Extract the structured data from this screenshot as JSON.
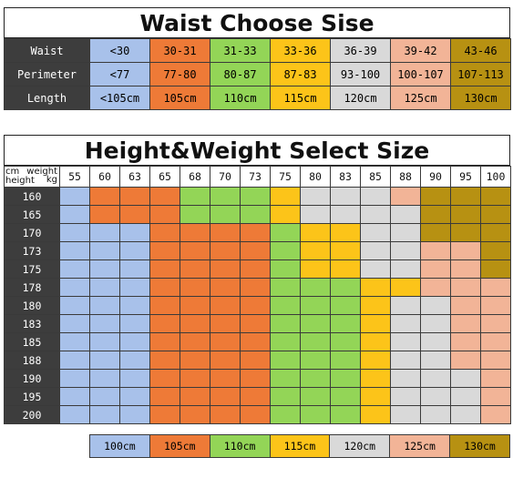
{
  "waist": {
    "title": "Waist Choose Sise",
    "rows": [
      {
        "label": "Waist",
        "cells": [
          "<30",
          "30-31",
          "31-33",
          "33-36",
          "36-39",
          "39-42",
          "43-46"
        ]
      },
      {
        "label": "Perimeter",
        "cells": [
          "<77",
          "77-80",
          "80-87",
          "87-83",
          "93-100",
          "100-107",
          "107-113"
        ]
      },
      {
        "label": "Length",
        "cells": [
          "<105cm",
          "105cm",
          "110cm",
          "115cm",
          "120cm",
          "125cm",
          "130cm"
        ]
      }
    ]
  },
  "height_weight": {
    "title": "Height&Weight Select Size",
    "corner": {
      "weight": "weight",
      "kg": "kg",
      "cm": "cm",
      "height": "height"
    },
    "weights": [
      "55",
      "60",
      "63",
      "65",
      "68",
      "70",
      "73",
      "75",
      "80",
      "83",
      "85",
      "88",
      "90",
      "95",
      "100"
    ],
    "heights": [
      "160",
      "165",
      "170",
      "173",
      "175",
      "178",
      "180",
      "183",
      "185",
      "188",
      "190",
      "195",
      "200"
    ],
    "grid": [
      [
        0,
        1,
        1,
        1,
        2,
        2,
        2,
        3,
        4,
        4,
        4,
        5,
        6,
        6,
        6
      ],
      [
        0,
        1,
        1,
        1,
        2,
        2,
        2,
        3,
        4,
        4,
        4,
        4,
        6,
        6,
        6
      ],
      [
        0,
        0,
        0,
        1,
        1,
        1,
        1,
        2,
        3,
        3,
        4,
        4,
        6,
        6,
        6
      ],
      [
        0,
        0,
        0,
        1,
        1,
        1,
        1,
        2,
        3,
        3,
        4,
        4,
        5,
        5,
        6
      ],
      [
        0,
        0,
        0,
        1,
        1,
        1,
        1,
        2,
        3,
        3,
        4,
        4,
        5,
        5,
        6
      ],
      [
        0,
        0,
        0,
        1,
        1,
        1,
        1,
        2,
        2,
        2,
        3,
        3,
        5,
        5,
        5
      ],
      [
        0,
        0,
        0,
        1,
        1,
        1,
        1,
        2,
        2,
        2,
        3,
        4,
        4,
        5,
        5
      ],
      [
        0,
        0,
        0,
        1,
        1,
        1,
        1,
        2,
        2,
        2,
        3,
        4,
        4,
        5,
        5
      ],
      [
        0,
        0,
        0,
        1,
        1,
        1,
        1,
        2,
        2,
        2,
        3,
        4,
        4,
        5,
        5
      ],
      [
        0,
        0,
        0,
        1,
        1,
        1,
        1,
        2,
        2,
        2,
        3,
        4,
        4,
        5,
        5
      ],
      [
        0,
        0,
        0,
        1,
        1,
        1,
        1,
        2,
        2,
        2,
        3,
        4,
        4,
        4,
        5
      ],
      [
        0,
        0,
        0,
        1,
        1,
        1,
        1,
        2,
        2,
        2,
        3,
        4,
        4,
        4,
        5
      ],
      [
        0,
        0,
        0,
        1,
        1,
        1,
        1,
        2,
        2,
        2,
        3,
        4,
        4,
        4,
        5
      ]
    ],
    "legend": [
      "100cm",
      "105cm",
      "110cm",
      "115cm",
      "120cm",
      "125cm",
      "130cm"
    ]
  },
  "colors": [
    "#a8c1ea",
    "#ee7a37",
    "#93d557",
    "#fcc419",
    "#d9d9d9",
    "#f2b497",
    "#b79112"
  ]
}
